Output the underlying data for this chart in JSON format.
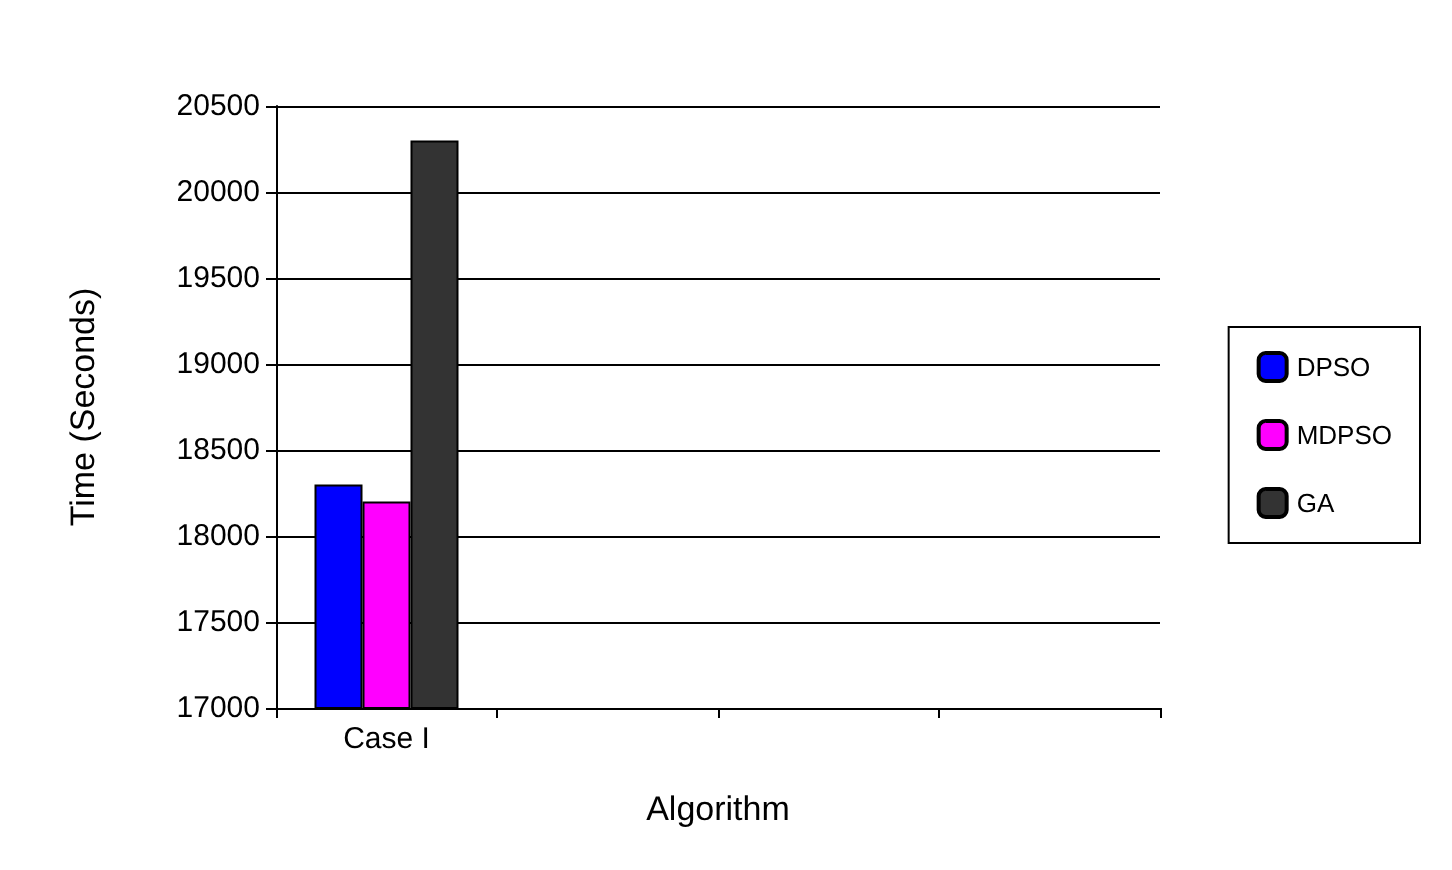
{
  "chart_data": {
    "type": "bar",
    "xlabel": "Algorithm",
    "ylabel": "Time (Seconds)",
    "categories": [
      "Case I",
      null,
      null,
      null
    ],
    "series": [
      {
        "name": "DPSO",
        "color": "#0000ff",
        "values": [
          18300,
          null,
          null,
          null
        ]
      },
      {
        "name": "MDPSO",
        "color": "#ff00ff",
        "values": [
          18200,
          null,
          null,
          null
        ]
      },
      {
        "name": "GA",
        "color": "#333333",
        "values": [
          20300,
          null,
          null,
          null
        ]
      }
    ],
    "ylim": [
      17000,
      20500
    ],
    "yticks": [
      17000,
      17500,
      18000,
      18500,
      19000,
      19500,
      20000,
      20500
    ],
    "grid": "y",
    "legend": "right"
  }
}
